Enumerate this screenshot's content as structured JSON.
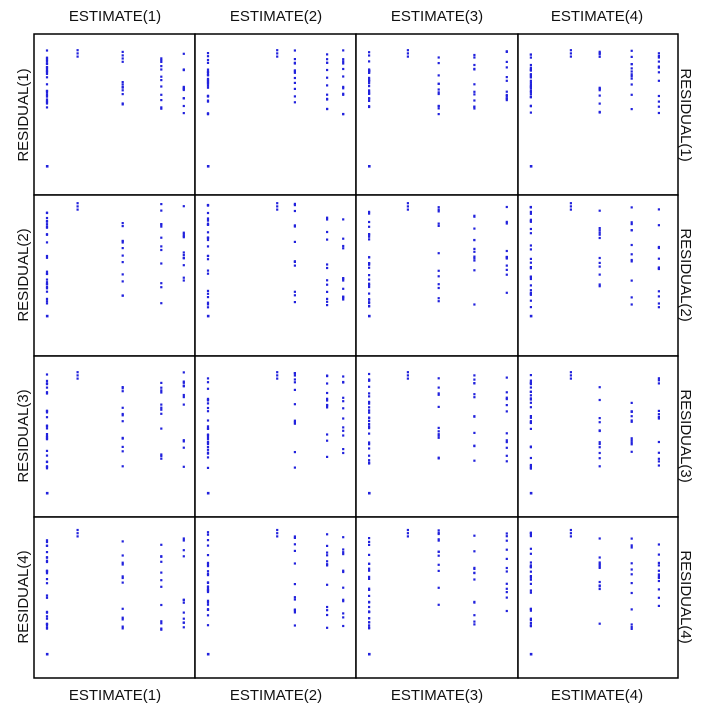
{
  "chart_data": {
    "type": "scatter",
    "title": "",
    "layout": "scatterplot-matrix",
    "columns": [
      "ESTIMATE(1)",
      "ESTIMATE(2)",
      "ESTIMATE(3)",
      "ESTIMATE(4)"
    ],
    "rows": [
      "RESIDUAL(1)",
      "RESIDUAL(2)",
      "RESIDUAL(3)",
      "RESIDUAL(4)"
    ],
    "point_color": "#2222dd",
    "axis_ticks": false,
    "grid": false,
    "xlim": [
      0,
      1
    ],
    "ylim": [
      0,
      1
    ],
    "estimate_levels": {
      "1": [
        0.08,
        0.27,
        0.55,
        0.79,
        0.93
      ],
      "2": [
        0.08,
        0.51,
        0.62,
        0.82,
        0.92
      ],
      "3": [
        0.08,
        0.32,
        0.51,
        0.73,
        0.93
      ],
      "4": [
        0.08,
        0.33,
        0.51,
        0.71,
        0.88
      ]
    },
    "residual_levels": {
      "1": [
        0.9,
        0.84,
        0.78,
        0.72,
        0.66,
        0.6,
        0.54,
        0.5,
        0.18
      ],
      "2": [
        0.95,
        0.76,
        0.58,
        0.52,
        0.46,
        0.4,
        0.35,
        0.3,
        0.25
      ],
      "3": [
        0.9,
        0.82,
        0.75,
        0.66,
        0.58,
        0.5,
        0.42,
        0.3,
        0.15
      ],
      "4": [
        0.92,
        0.85,
        0.78,
        0.7,
        0.62,
        0.55,
        0.48,
        0.3,
        0.15
      ]
    }
  }
}
